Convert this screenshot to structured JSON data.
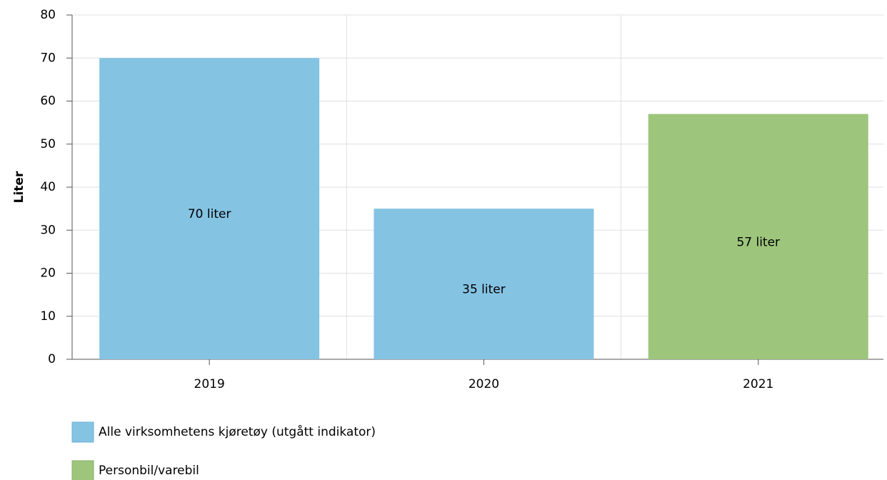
{
  "chart_data": {
    "type": "bar",
    "y_label": "Liter",
    "categories": [
      "2019",
      "2020",
      "2021"
    ],
    "series": [
      {
        "name": "Alle virksomhetens kjøretøy (utgått indikator)",
        "color": "#85c3e3",
        "values": [
          70,
          35,
          null
        ],
        "value_labels": [
          "70 liter",
          "35 liter",
          null
        ]
      },
      {
        "name": "Personbil/varebil",
        "color": "#9dc57c",
        "values": [
          null,
          null,
          57
        ],
        "value_labels": [
          null,
          null,
          "57 liter"
        ]
      }
    ],
    "ylim": [
      0,
      80
    ],
    "yticks": [
      0,
      10,
      20,
      30,
      40,
      50,
      60,
      70,
      80
    ],
    "grid": true
  }
}
